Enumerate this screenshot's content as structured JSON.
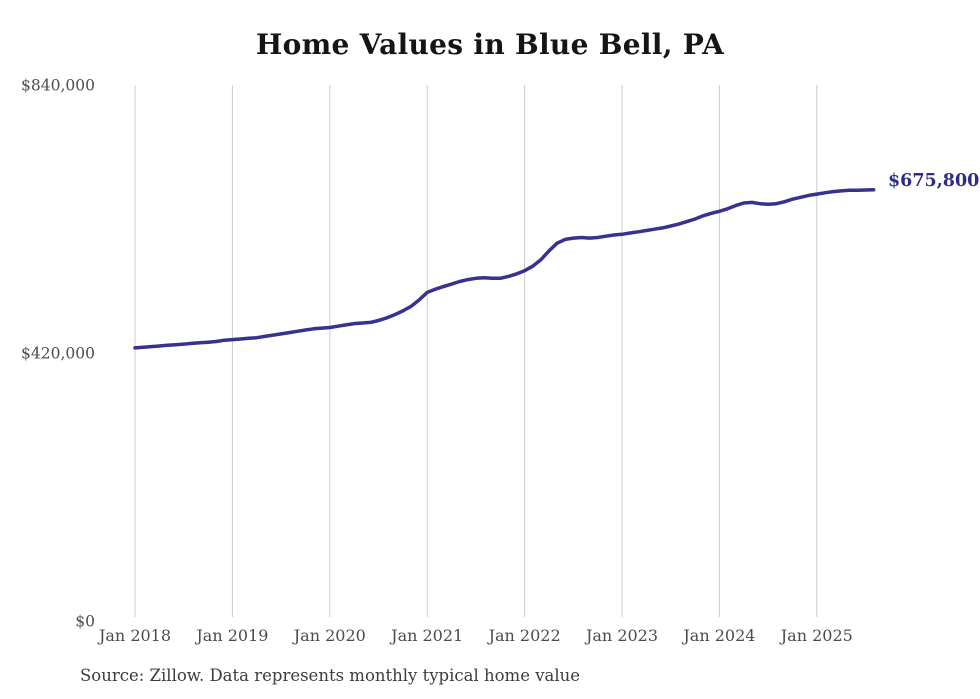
{
  "chart": {
    "title": "Home Values in Blue Bell, PA",
    "source": "Source: Zillow. Data represents monthly typical home value",
    "end_label": "$675,800"
  },
  "colors": {
    "line": "#37318f",
    "end_label": "#2e2c89",
    "gridline": "#cccccc",
    "axis_label": "#4c4c4c",
    "title": "#151515",
    "source": "#3c3c3c",
    "background": "#ffffff"
  },
  "chart_data": {
    "type": "line",
    "title": "Home Values in Blue Bell, PA",
    "xlabel": "",
    "ylabel": "",
    "x_start": "2018-01",
    "x_end": "2025-08",
    "x_frequency": "monthly",
    "ylim": [
      0,
      840000
    ],
    "grid": "vertical-only",
    "legend": "none",
    "x_ticks": [
      {
        "month_index": 0,
        "label": "Jan 2018"
      },
      {
        "month_index": 12,
        "label": "Jan 2019"
      },
      {
        "month_index": 24,
        "label": "Jan 2020"
      },
      {
        "month_index": 36,
        "label": "Jan 2021"
      },
      {
        "month_index": 48,
        "label": "Jan 2022"
      },
      {
        "month_index": 60,
        "label": "Jan 2023"
      },
      {
        "month_index": 72,
        "label": "Jan 2024"
      },
      {
        "month_index": 84,
        "label": "Jan 2025"
      }
    ],
    "y_ticks": [
      {
        "value": 0,
        "label": "$0"
      },
      {
        "value": 420000,
        "label": "$420,000"
      },
      {
        "value": 840000,
        "label": "$840,000"
      }
    ],
    "series": [
      {
        "name": "Typical home value",
        "final_value": 675800,
        "final_value_label": "$675,800",
        "monthly_values": [
          428000,
          429000,
          430000,
          431000,
          432000,
          433000,
          434000,
          435000,
          436000,
          437000,
          438000,
          440000,
          441000,
          442000,
          443000,
          444000,
          446000,
          448000,
          450000,
          452000,
          454000,
          456000,
          458000,
          459000,
          460000,
          462000,
          464000,
          466000,
          467000,
          468000,
          471000,
          475000,
          480000,
          486000,
          493000,
          503000,
          515000,
          520000,
          524000,
          528000,
          532000,
          535000,
          537000,
          538000,
          537000,
          537000,
          540000,
          544000,
          549000,
          556000,
          566000,
          580000,
          592000,
          598000,
          600000,
          601000,
          600000,
          601000,
          603000,
          605000,
          606000,
          608000,
          610000,
          612000,
          614000,
          616000,
          619000,
          622000,
          626000,
          630000,
          635000,
          639000,
          642000,
          646000,
          651000,
          655000,
          656000,
          654000,
          653000,
          654000,
          657000,
          661000,
          664000,
          667000,
          669000,
          671000,
          673000,
          674000,
          675000,
          675000,
          675500,
          675800
        ]
      }
    ]
  }
}
